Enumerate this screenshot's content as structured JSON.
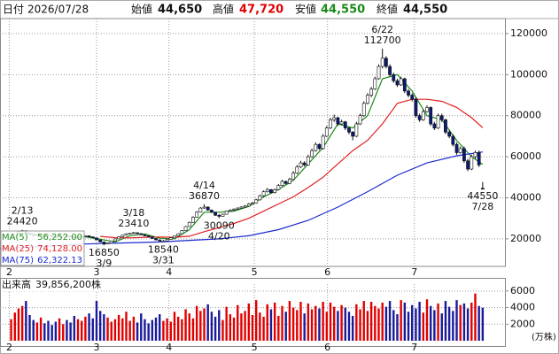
{
  "header": {
    "date_label": "日付",
    "date": "2026/07/28",
    "open_label": "始値",
    "open": "44,650",
    "high_label": "高値",
    "high": "47,720",
    "low_label": "安値",
    "low": "44,550",
    "close_label": "終値",
    "close": "44,550"
  },
  "chart_data": [
    {
      "type": "candlestick",
      "xlim": [
        -3,
        133
      ],
      "ylim": [
        6600,
        127300
      ],
      "yticks": [
        20000,
        40000,
        60000,
        80000,
        100000,
        120000
      ],
      "grid": true,
      "xticks": [
        {
          "value": -0.5,
          "label": "2"
        },
        {
          "value": 23,
          "label": "3"
        },
        {
          "value": 42.5,
          "label": "4"
        },
        {
          "value": 65.5,
          "label": "5"
        },
        {
          "value": 85.2,
          "label": "6"
        },
        {
          "value": 108.6,
          "label": "7"
        }
      ],
      "up_color": "#ffffff",
      "down_color": "#0a1a7a",
      "candles": [
        [
          20500,
          21300,
          20300,
          21000
        ],
        [
          21000,
          22700,
          20900,
          22500
        ],
        [
          22500,
          23800,
          22300,
          23500
        ],
        [
          23500,
          24420,
          23200,
          24000
        ],
        [
          24000,
          24100,
          22600,
          22800
        ],
        [
          22800,
          23000,
          21800,
          22000
        ],
        [
          22000,
          22200,
          21300,
          21500
        ],
        [
          21500,
          22000,
          21300,
          21800
        ],
        [
          21800,
          22500,
          21600,
          22300
        ],
        [
          22300,
          22400,
          21700,
          21900
        ],
        [
          21900,
          22000,
          21300,
          21500
        ],
        [
          21500,
          21700,
          20800,
          21000
        ],
        [
          21000,
          21200,
          20500,
          20800
        ],
        [
          20800,
          21400,
          20600,
          21200
        ],
        [
          21200,
          21800,
          21000,
          21600
        ],
        [
          21600,
          21700,
          21200,
          21400
        ],
        [
          21400,
          21500,
          20800,
          21000
        ],
        [
          21000,
          21100,
          20300,
          20500
        ],
        [
          20500,
          21000,
          20300,
          20800
        ],
        [
          20800,
          21400,
          20600,
          21200
        ],
        [
          21200,
          21700,
          21000,
          21500
        ],
        [
          21500,
          21600,
          20800,
          21000
        ],
        [
          21000,
          21100,
          20300,
          20500
        ],
        [
          20500,
          20600,
          19300,
          19500
        ],
        [
          19500,
          19700,
          18300,
          18500
        ],
        [
          18500,
          18700,
          16850,
          17500
        ],
        [
          17500,
          18200,
          17300,
          18000
        ],
        [
          18000,
          19200,
          17900,
          19000
        ],
        [
          19000,
          20200,
          18900,
          20000
        ],
        [
          20000,
          21200,
          19900,
          21000
        ],
        [
          21000,
          22000,
          20900,
          21800
        ],
        [
          21800,
          22700,
          21600,
          22500
        ],
        [
          22500,
          23000,
          22300,
          22800
        ],
        [
          22800,
          23410,
          22600,
          23000
        ],
        [
          23000,
          23100,
          22400,
          22600
        ],
        [
          22600,
          22700,
          21800,
          22000
        ],
        [
          22000,
          22100,
          21300,
          21500
        ],
        [
          21500,
          21600,
          20800,
          21000
        ],
        [
          21000,
          21100,
          20000,
          20200
        ],
        [
          20200,
          20300,
          19300,
          19500
        ],
        [
          19500,
          19700,
          18800,
          19000
        ],
        [
          19000,
          19500,
          18540,
          19000
        ],
        [
          19000,
          20000,
          18900,
          19800
        ],
        [
          19800,
          20700,
          19600,
          20500
        ],
        [
          20500,
          21700,
          20400,
          21500
        ],
        [
          21500,
          22700,
          21300,
          22500
        ],
        [
          22500,
          24300,
          22400,
          24000
        ],
        [
          24000,
          26300,
          23800,
          26000
        ],
        [
          26000,
          28400,
          25800,
          28000
        ],
        [
          28000,
          31000,
          27800,
          30500
        ],
        [
          30500,
          33500,
          30300,
          33000
        ],
        [
          33000,
          35500,
          32800,
          35000
        ],
        [
          35000,
          36870,
          34700,
          35500
        ],
        [
          35500,
          35800,
          33700,
          34000
        ],
        [
          34000,
          34300,
          32700,
          33000
        ],
        [
          33000,
          33200,
          31200,
          31500
        ],
        [
          31500,
          32000,
          30090,
          31000
        ],
        [
          31000,
          32300,
          30800,
          32000
        ],
        [
          32000,
          33800,
          31800,
          33500
        ],
        [
          33500,
          34400,
          33200,
          34000
        ],
        [
          34000,
          34900,
          33700,
          34500
        ],
        [
          34500,
          35400,
          34200,
          35000
        ],
        [
          35000,
          35900,
          34700,
          35500
        ],
        [
          35500,
          36400,
          35200,
          36000
        ],
        [
          36000,
          37500,
          35700,
          37000
        ],
        [
          37000,
          38000,
          36600,
          37500
        ],
        [
          37500,
          39500,
          37200,
          39000
        ],
        [
          39000,
          41600,
          38700,
          41000
        ],
        [
          41000,
          43600,
          40600,
          43000
        ],
        [
          43000,
          44800,
          42600,
          44000
        ],
        [
          44000,
          44300,
          42000,
          42500
        ],
        [
          42500,
          44600,
          42100,
          44000
        ],
        [
          44000,
          46700,
          43600,
          46000
        ],
        [
          46000,
          48800,
          45600,
          48000
        ],
        [
          48000,
          48300,
          46500,
          47000
        ],
        [
          47000,
          49800,
          46600,
          49000
        ],
        [
          49000,
          53000,
          48600,
          52000
        ],
        [
          52000,
          56000,
          51500,
          55000
        ],
        [
          55000,
          58000,
          54500,
          57000
        ],
        [
          57000,
          57800,
          55300,
          56000
        ],
        [
          56000,
          61000,
          55600,
          60000
        ],
        [
          60000,
          64000,
          59500,
          63000
        ],
        [
          63000,
          67000,
          62500,
          66000
        ],
        [
          66000,
          66500,
          63300,
          64000
        ],
        [
          64000,
          71000,
          63500,
          70000
        ],
        [
          70000,
          75000,
          69500,
          74000
        ],
        [
          74000,
          79000,
          73500,
          78000
        ],
        [
          78000,
          80500,
          77000,
          79000
        ],
        [
          79000,
          79500,
          75000,
          76000
        ],
        [
          76000,
          78000,
          75500,
          77000
        ],
        [
          77000,
          77500,
          73000,
          74000
        ],
        [
          74000,
          74500,
          71000,
          72000
        ],
        [
          72000,
          72500,
          68000,
          70000
        ],
        [
          70000,
          77000,
          69500,
          76000
        ],
        [
          76000,
          81000,
          75500,
          80000
        ],
        [
          80000,
          87000,
          79500,
          86000
        ],
        [
          86000,
          91000,
          85500,
          90000
        ],
        [
          90000,
          94000,
          89000,
          93000
        ],
        [
          93000,
          99000,
          92500,
          98000
        ],
        [
          98000,
          105000,
          97500,
          104000
        ],
        [
          104000,
          112700,
          103000,
          108000
        ],
        [
          108000,
          109000,
          103000,
          104000
        ],
        [
          104000,
          105000,
          99000,
          100000
        ],
        [
          100000,
          101000,
          96000,
          97000
        ],
        [
          97000,
          98000,
          94000,
          95000
        ],
        [
          95000,
          99000,
          94500,
          98000
        ],
        [
          98000,
          98500,
          91000,
          92000
        ],
        [
          92000,
          93000,
          89000,
          90000
        ],
        [
          90000,
          91000,
          87000,
          88000
        ],
        [
          88000,
          89000,
          79000,
          80000
        ],
        [
          80000,
          81000,
          77000,
          78000
        ],
        [
          78000,
          83000,
          77500,
          82000
        ],
        [
          82000,
          85000,
          81500,
          84000
        ],
        [
          84000,
          84500,
          75000,
          76000
        ],
        [
          76000,
          77000,
          73000,
          74000
        ],
        [
          74000,
          81000,
          73500,
          80000
        ],
        [
          80000,
          81000,
          77000,
          78000
        ],
        [
          78000,
          78500,
          71000,
          72000
        ],
        [
          72000,
          73000,
          69000,
          70000
        ],
        [
          70000,
          71000,
          65000,
          66000
        ],
        [
          66000,
          67000,
          61000,
          62000
        ],
        [
          62000,
          65000,
          61500,
          64000
        ],
        [
          64000,
          65000,
          57000,
          58000
        ],
        [
          58000,
          59000,
          53000,
          54000
        ],
        [
          54000,
          61000,
          53500,
          60000
        ],
        [
          60000,
          63000,
          59000,
          62000
        ],
        [
          62000,
          63000,
          55000,
          56000
        ],
        [
          44650,
          47720,
          44550,
          44550
        ]
      ],
      "series": [
        {
          "name": "MA(5)",
          "color": "#1e8c1e",
          "legend_value": "56,252.00",
          "x": [
            4,
            8,
            12,
            16,
            20,
            24,
            28,
            32,
            36,
            40,
            44,
            48,
            52,
            56,
            60,
            64,
            68,
            72,
            76,
            80,
            84,
            88,
            92,
            96,
            100,
            104,
            108,
            112,
            116,
            120,
            124,
            127
          ],
          "values": [
            22900,
            22000,
            21200,
            21200,
            21000,
            19800,
            18500,
            21500,
            22400,
            20300,
            20000,
            24500,
            33000,
            33000,
            33500,
            35800,
            40500,
            44000,
            48500,
            56500,
            64500,
            76000,
            74000,
            80000,
            98000,
            100000,
            92000,
            80000,
            78000,
            68000,
            60000,
            56252
          ]
        },
        {
          "name": "MA(25)",
          "color": "#e02020",
          "legend_value": "74,128.00",
          "x": [
            24,
            28,
            32,
            36,
            40,
            44,
            48,
            52,
            56,
            60,
            64,
            68,
            72,
            76,
            80,
            84,
            88,
            92,
            96,
            100,
            104,
            108,
            112,
            116,
            120,
            124,
            127
          ],
          "values": [
            21200,
            20600,
            20500,
            20800,
            20900,
            20800,
            21300,
            23500,
            25500,
            27500,
            30000,
            33500,
            37000,
            40500,
            45000,
            50000,
            56500,
            63000,
            68000,
            76000,
            86000,
            88000,
            88000,
            87000,
            84000,
            79000,
            74128
          ]
        },
        {
          "name": "MA(75)",
          "color": "#1a2ad0",
          "legend_value": "62,322.13",
          "x": [
            -3,
            0,
            20,
            40,
            56,
            64,
            72,
            80,
            88,
            96,
            104,
            112,
            120,
            127
          ],
          "values": [
            15300,
            15500,
            17500,
            18500,
            20000,
            21500,
            24500,
            29000,
            35500,
            43000,
            51000,
            57000,
            60500,
            62322.13
          ]
        }
      ],
      "annotations": [
        {
          "date": "2/13",
          "value": 24420
        },
        {
          "date": "3/9",
          "value": 16850
        },
        {
          "date": "3/18",
          "value": 23410
        },
        {
          "date": "3/31",
          "value": 18540
        },
        {
          "date": "4/14",
          "value": 36870
        },
        {
          "date": "4/20",
          "value": 30090
        },
        {
          "date": "6/22",
          "value": 112700
        },
        {
          "date": "7/28",
          "value": 44550
        }
      ]
    },
    {
      "type": "bar",
      "title": "出来高",
      "title_value": "39,856,200株",
      "unit": "(万株)",
      "xlim": [
        -3,
        133
      ],
      "ylim": [
        0,
        6840
      ],
      "yticks": [
        2000,
        4000,
        6000
      ],
      "xticks": [
        {
          "value": -0.5,
          "label": "2"
        },
        {
          "value": 23,
          "label": "3"
        },
        {
          "value": 42.5,
          "label": "4"
        },
        {
          "value": 65.5,
          "label": "5"
        },
        {
          "value": 85.2,
          "label": "6"
        },
        {
          "value": 108.6,
          "label": "7"
        }
      ],
      "up_color": "#e00000",
      "down_color": "#1a1a9a",
      "values": [
        2600,
        3400,
        3900,
        4200,
        4800,
        3100,
        2500,
        2200,
        2800,
        2100,
        2400,
        1900,
        2300,
        2700,
        2000,
        2500,
        2200,
        3000,
        2600,
        2400,
        2900,
        3300,
        2700,
        4800,
        3600,
        3200,
        2800,
        2300,
        2600,
        3100,
        2700,
        3500,
        2400,
        2900,
        2200,
        3300,
        2600,
        2100,
        2500,
        2800,
        3200,
        2400,
        2700,
        2300,
        3500,
        2900,
        2600,
        3800,
        3300,
        2700,
        4200,
        3600,
        3900,
        4400,
        3500,
        2900,
        3700,
        2500,
        4100,
        3200,
        2800,
        4300,
        3300,
        3600,
        4500,
        3100,
        4900,
        3400,
        2900,
        4400,
        3800,
        4600,
        3000,
        4200,
        3500,
        4800,
        4000,
        3700,
        4700,
        3300,
        4500,
        3800,
        4200,
        3900,
        4700,
        3500,
        4600,
        4100,
        3600,
        4300,
        4000,
        3500,
        3000,
        4400,
        3800,
        4800,
        3600,
        4700,
        4200,
        3900,
        4600,
        4100,
        4800,
        3700,
        3200,
        4900,
        4600,
        3500,
        4300,
        3900,
        4700,
        3400,
        5000,
        4200,
        3700,
        4500,
        3300,
        4800,
        4100,
        3600,
        4900,
        4300,
        4500,
        3900,
        4600,
        5700,
        4200,
        3985.62
      ]
    }
  ]
}
